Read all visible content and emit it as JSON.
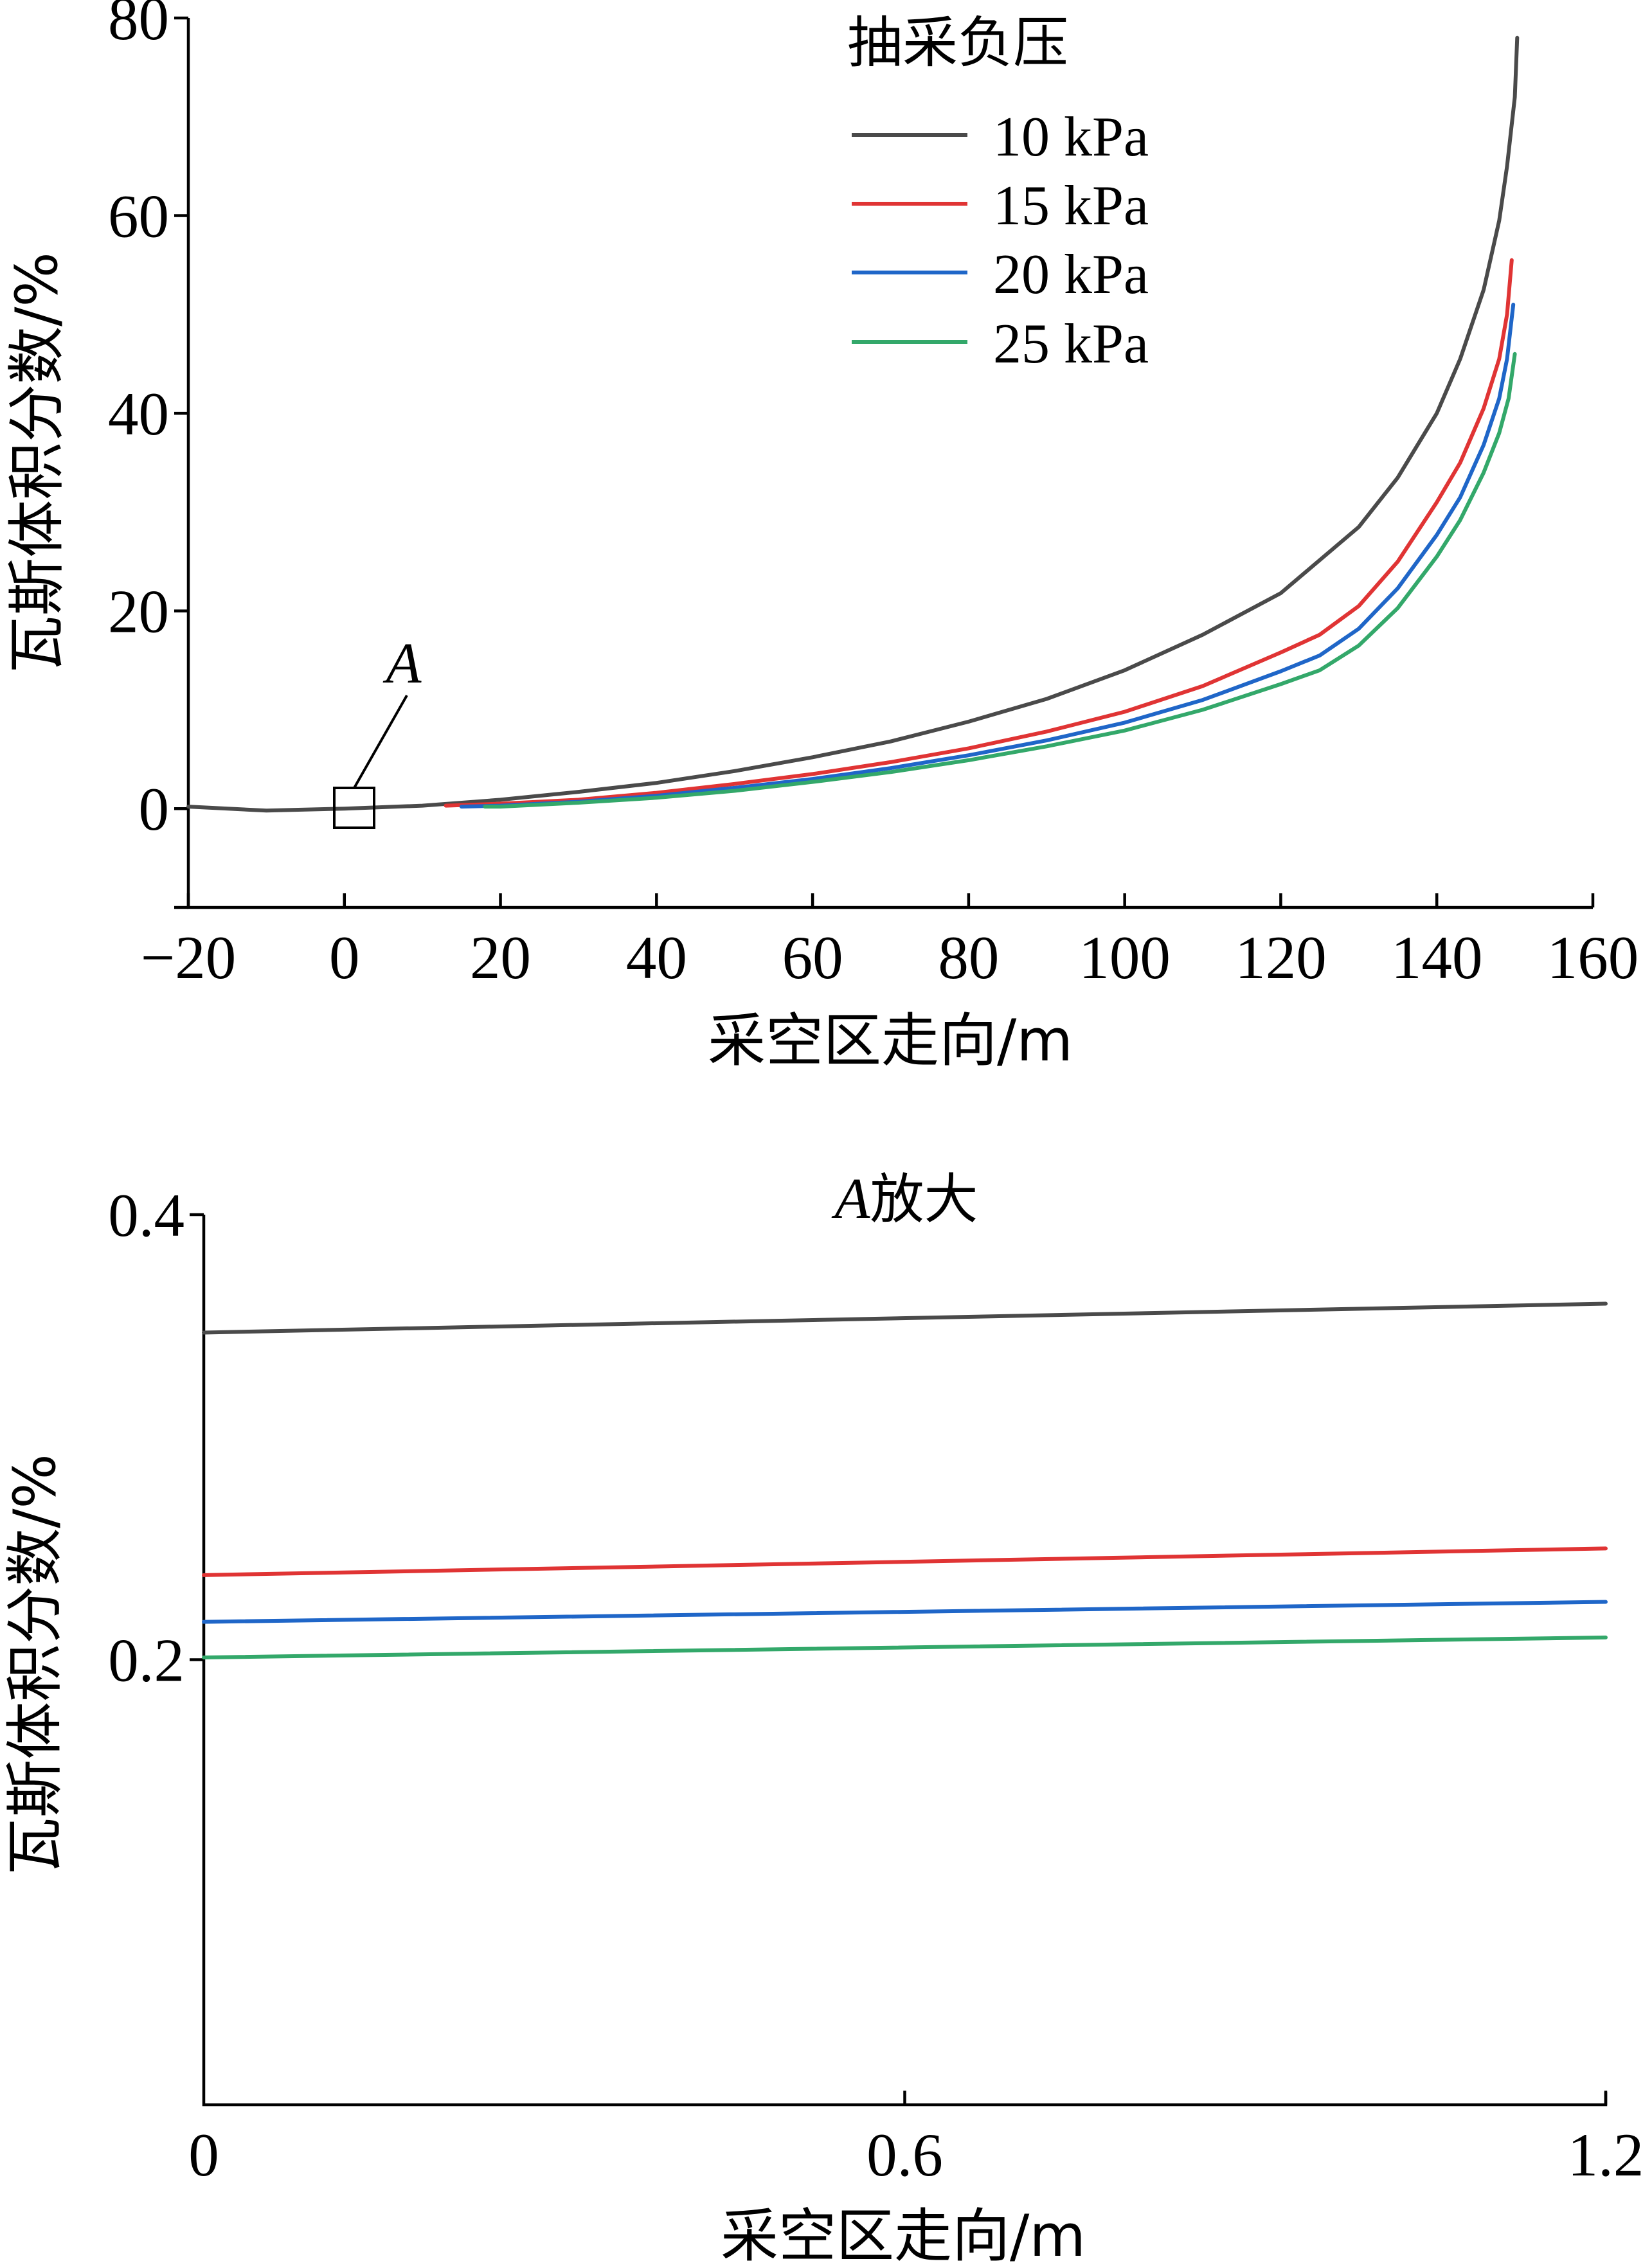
{
  "colors": {
    "10 kPa": "#4a4a4a",
    "15 kPa": "#e03434",
    "20 kPa": "#1f66c8",
    "25 kPa": "#33a86a"
  },
  "chart_data": [
    {
      "type": "line",
      "title": "",
      "xlabel": "采空区走向/m",
      "ylabel": "瓦斯体积分数/%",
      "xlim": [
        -20,
        160
      ],
      "ylim": [
        -10,
        80
      ],
      "xticks": [
        "−20",
        "0",
        "20",
        "40",
        "60",
        "80",
        "100",
        "120",
        "140",
        "160"
      ],
      "xtick_values": [
        -20,
        0,
        20,
        40,
        60,
        80,
        100,
        120,
        140,
        160
      ],
      "yticks": [
        "0",
        "20",
        "40",
        "60",
        "80"
      ],
      "ytick_values": [
        0,
        20,
        40,
        60,
        80
      ],
      "legend": {
        "title": "抽采负压",
        "position": "top-right"
      },
      "annotation": {
        "label": "A",
        "box_center": [
          2,
          0
        ]
      },
      "series": [
        {
          "name": "10 kPa",
          "x": [
            -20,
            -10,
            0,
            10,
            20,
            30,
            40,
            50,
            60,
            70,
            80,
            90,
            100,
            110,
            120,
            130,
            135,
            140,
            143,
            146,
            148,
            149,
            150,
            150.3
          ],
          "y": [
            0.2,
            -0.2,
            0,
            0.3,
            0.9,
            1.7,
            2.6,
            3.8,
            5.2,
            6.8,
            8.8,
            11.1,
            14.0,
            17.6,
            21.8,
            28.5,
            33.5,
            40.0,
            45.5,
            52.5,
            59.5,
            65.0,
            72.0,
            78.0
          ]
        },
        {
          "name": "15 kPa",
          "x": [
            13,
            20,
            30,
            40,
            50,
            60,
            70,
            80,
            90,
            100,
            110,
            120,
            125,
            130,
            135,
            140,
            143,
            146,
            148,
            149,
            149.6
          ],
          "y": [
            0.3,
            0.5,
            0.9,
            1.6,
            2.5,
            3.5,
            4.7,
            6.1,
            7.8,
            9.8,
            12.4,
            15.8,
            17.6,
            20.5,
            25.0,
            31.0,
            35.0,
            40.5,
            45.5,
            50.0,
            55.5
          ]
        },
        {
          "name": "20 kPa",
          "x": [
            15,
            20,
            30,
            40,
            50,
            60,
            70,
            80,
            90,
            100,
            110,
            120,
            125,
            130,
            135,
            140,
            143,
            146,
            148,
            149,
            149.8
          ],
          "y": [
            0.2,
            0.3,
            0.7,
            1.3,
            2.1,
            3.0,
            4.1,
            5.4,
            6.9,
            8.7,
            11.0,
            13.9,
            15.5,
            18.2,
            22.3,
            27.7,
            31.5,
            36.8,
            41.5,
            45.5,
            51.0
          ]
        },
        {
          "name": "25 kPa",
          "x": [
            18,
            20,
            30,
            40,
            50,
            60,
            70,
            80,
            90,
            100,
            110,
            120,
            125,
            130,
            135,
            140,
            143,
            146,
            148,
            149.2,
            150
          ],
          "y": [
            0.2,
            0.2,
            0.6,
            1.1,
            1.8,
            2.7,
            3.7,
            4.9,
            6.3,
            7.9,
            10.0,
            12.6,
            14.0,
            16.5,
            20.3,
            25.5,
            29.2,
            34.0,
            38.0,
            41.5,
            46.0
          ]
        }
      ]
    },
    {
      "type": "line",
      "title": "A放大",
      "title_italic": "A",
      "title_rest": "放大",
      "xlabel": "采空区走向/m",
      "ylabel": "瓦斯体积分数/%",
      "xlim": [
        0,
        1.2
      ],
      "ylim": [
        0,
        0.4
      ],
      "xticks": [
        "0",
        "0.6",
        "1.2"
      ],
      "xtick_values": [
        0,
        0.6,
        1.2
      ],
      "yticks": [
        "0.2",
        "0.4"
      ],
      "ytick_values": [
        0.2,
        0.4
      ],
      "series": [
        {
          "name": "10 kPa",
          "x": [
            0,
            1.2
          ],
          "y": [
            0.347,
            0.36
          ]
        },
        {
          "name": "15 kPa",
          "x": [
            0,
            1.2
          ],
          "y": [
            0.238,
            0.25
          ]
        },
        {
          "name": "20 kPa",
          "x": [
            0,
            1.2
          ],
          "y": [
            0.217,
            0.226
          ]
        },
        {
          "name": "25 kPa",
          "x": [
            0,
            1.2
          ],
          "y": [
            0.201,
            0.21
          ]
        }
      ]
    }
  ]
}
